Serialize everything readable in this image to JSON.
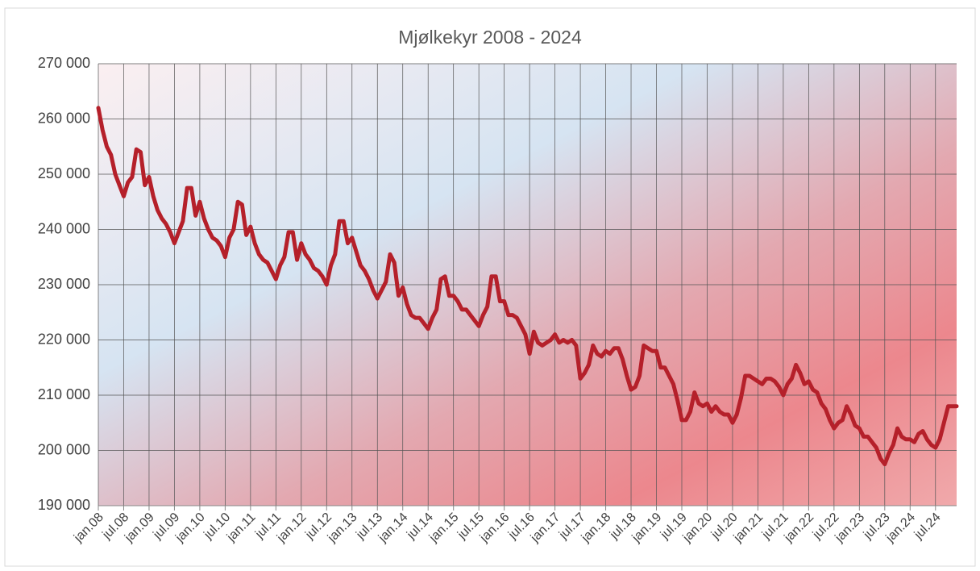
{
  "chart_data": {
    "type": "line",
    "title": "Mjølkekyr 2008 - 2024",
    "color": "#b5202a",
    "grid": true,
    "ylim": [
      190000,
      270000
    ],
    "yticks": [
      {
        "value": 190000,
        "label": "190 000"
      },
      {
        "value": 200000,
        "label": "200 000"
      },
      {
        "value": 210000,
        "label": "210 000"
      },
      {
        "value": 220000,
        "label": "220 000"
      },
      {
        "value": 230000,
        "label": "230 000"
      },
      {
        "value": 240000,
        "label": "240 000"
      },
      {
        "value": 250000,
        "label": "250 000"
      },
      {
        "value": 260000,
        "label": "260 000"
      },
      {
        "value": 270000,
        "label": "270 000"
      }
    ],
    "categories": [
      "jan.08",
      null,
      null,
      null,
      null,
      null,
      "jul.08",
      null,
      null,
      null,
      null,
      null,
      "jan.09",
      null,
      null,
      null,
      null,
      null,
      "jul.09",
      null,
      null,
      null,
      null,
      null,
      "jan.10",
      null,
      null,
      null,
      null,
      null,
      "jul.10",
      null,
      null,
      null,
      null,
      null,
      "jan.11",
      null,
      null,
      null,
      null,
      null,
      "jul.11",
      null,
      null,
      null,
      null,
      null,
      "jan.12",
      null,
      null,
      null,
      null,
      null,
      "jul.12",
      null,
      null,
      null,
      null,
      null,
      "jan.13",
      null,
      null,
      null,
      null,
      null,
      "jul.13",
      null,
      null,
      null,
      null,
      null,
      "jan.14",
      null,
      null,
      null,
      null,
      null,
      "jul.14",
      null,
      null,
      null,
      null,
      null,
      "jan.15",
      null,
      null,
      null,
      null,
      null,
      "jul.15",
      null,
      null,
      null,
      null,
      null,
      "jan.16",
      null,
      null,
      null,
      null,
      null,
      "jul.16",
      null,
      null,
      null,
      null,
      null,
      "jan.17",
      null,
      null,
      null,
      null,
      null,
      "jul.17",
      null,
      null,
      null,
      null,
      null,
      "jan.18",
      null,
      null,
      null,
      null,
      null,
      "jul.18",
      null,
      null,
      null,
      null,
      null,
      "jan.19",
      null,
      null,
      null,
      null,
      null,
      "jul.19",
      null,
      null,
      null,
      null,
      null,
      "jan.20",
      null,
      null,
      null,
      null,
      null,
      "jul.20",
      null,
      null,
      null,
      null,
      null,
      "jan.21",
      null,
      null,
      null,
      null,
      null,
      "jul.21",
      null,
      null,
      null,
      null,
      null,
      "jan.22",
      null,
      null,
      null,
      null,
      null,
      "jul.22",
      null,
      null,
      null,
      null,
      null,
      "jan.23",
      null,
      null,
      null,
      null,
      null,
      "jul.23",
      null,
      null,
      null,
      null,
      null,
      "jan.24",
      null,
      null,
      null,
      null,
      null,
      "jul.24",
      null,
      null,
      null,
      null,
      null
    ],
    "values": [
      262000,
      258000,
      255000,
      253500,
      250000,
      248000,
      246000,
      248500,
      249500,
      254500,
      254000,
      248000,
      249500,
      246000,
      243500,
      242000,
      241000,
      239500,
      237500,
      239500,
      241500,
      247500,
      247500,
      242500,
      245000,
      242000,
      240000,
      238500,
      238000,
      237000,
      235000,
      238500,
      240000,
      245000,
      244500,
      239000,
      240500,
      237500,
      235500,
      234500,
      234000,
      232500,
      231000,
      233500,
      235000,
      239500,
      239500,
      234500,
      237500,
      235500,
      234500,
      233000,
      232500,
      231500,
      230000,
      233500,
      235500,
      241500,
      241500,
      237500,
      238500,
      236000,
      233500,
      232500,
      231000,
      229000,
      227500,
      229000,
      230500,
      235500,
      234000,
      228000,
      229500,
      226500,
      224500,
      224000,
      224000,
      223000,
      222000,
      224000,
      225500,
      231000,
      231500,
      228000,
      228000,
      227000,
      225500,
      225500,
      224500,
      223500,
      222500,
      224500,
      226000,
      231500,
      231500,
      227000,
      227000,
      224500,
      224500,
      224000,
      222500,
      221000,
      217500,
      221500,
      219500,
      219000,
      219500,
      220000,
      221000,
      219500,
      220000,
      219500,
      220000,
      219000,
      213000,
      214000,
      215500,
      219000,
      217500,
      217000,
      218000,
      217500,
      218500,
      218500,
      216500,
      213500,
      211000,
      211500,
      213500,
      219000,
      218500,
      218000,
      218000,
      215000,
      215000,
      213500,
      212000,
      209000,
      205500,
      205500,
      207000,
      210500,
      208500,
      208000,
      208500,
      207000,
      208000,
      207000,
      206500,
      206500,
      205000,
      206500,
      209500,
      213500,
      213500,
      213000,
      212500,
      212000,
      213000,
      213000,
      212500,
      211500,
      210000,
      212000,
      213000,
      215500,
      214000,
      212000,
      212500,
      211000,
      210500,
      208500,
      207500,
      205500,
      204000,
      205000,
      205500,
      208000,
      206500,
      204500,
      204000,
      202500,
      202500,
      201500,
      200500,
      198500,
      197500,
      199500,
      201000,
      204000,
      202500,
      202000,
      202000,
      201500,
      203000,
      203500,
      202000,
      201000,
      200500,
      202000,
      205000,
      208000,
      208000,
      208000
    ]
  }
}
